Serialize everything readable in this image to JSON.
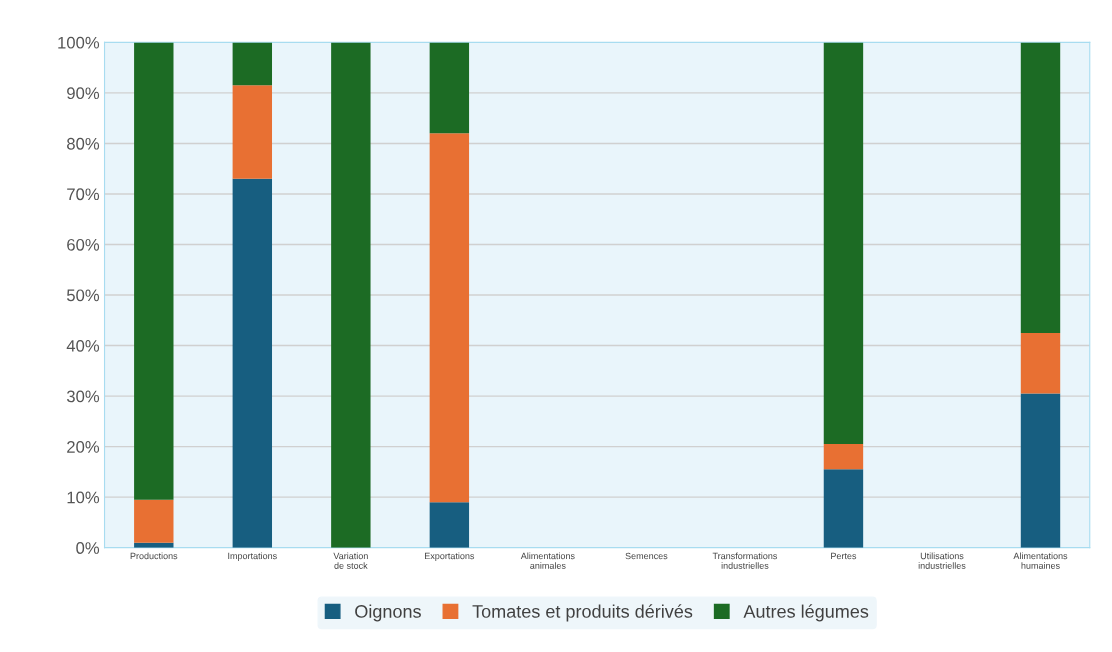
{
  "chart_data": {
    "type": "bar",
    "stacked": true,
    "categories": [
      "Productions",
      "Importations",
      "Variation\nde stock",
      "Exportations",
      "Alimentations\nanimales",
      "Semences",
      "Transformations\nindustrielles",
      "Pertes",
      "Utilisations\nindustrielles",
      "Alimentations\nhumaines"
    ],
    "series": [
      {
        "name": "Oignons",
        "color": "#175e80",
        "values": [
          1,
          73,
          0,
          9,
          null,
          null,
          null,
          15.5,
          null,
          30.5
        ]
      },
      {
        "name": "Tomates et produits dérivés",
        "color": "#e87033",
        "values": [
          8.5,
          18.5,
          0,
          73,
          null,
          null,
          null,
          5,
          null,
          12
        ]
      },
      {
        "name": "Autres légumes",
        "color": "#1c6b24",
        "values": [
          90.5,
          8.5,
          100,
          18,
          null,
          null,
          null,
          79.5,
          null,
          57.5
        ]
      }
    ],
    "ylim": [
      0,
      100
    ],
    "yticks": [
      {
        "value": 0,
        "label": "0%"
      },
      {
        "value": 10,
        "label": "10%"
      },
      {
        "value": 20,
        "label": "20%"
      },
      {
        "value": 30,
        "label": "30%"
      },
      {
        "value": 40,
        "label": "40%"
      },
      {
        "value": 50,
        "label": "50%"
      },
      {
        "value": 60,
        "label": "60%"
      },
      {
        "value": 70,
        "label": "70%"
      },
      {
        "value": 80,
        "label": "80%"
      },
      {
        "value": 90,
        "label": "90%"
      },
      {
        "value": 100,
        "label": "100%"
      }
    ],
    "grid": "y",
    "legend": "bottom"
  }
}
